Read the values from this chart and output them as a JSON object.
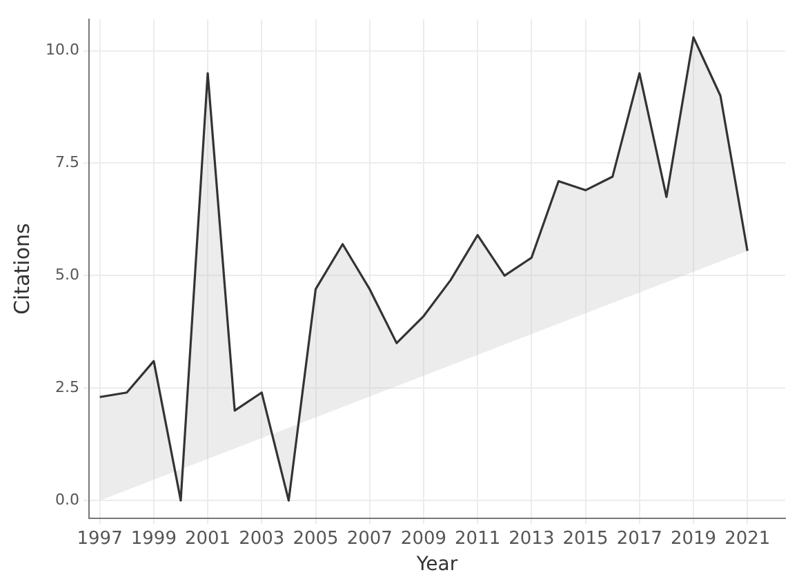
{
  "chart_data": {
    "type": "area",
    "xlabel": "Year",
    "ylabel": "Citations",
    "x": [
      1997,
      1998,
      1999,
      2000,
      2001,
      2002,
      2003,
      2004,
      2005,
      2006,
      2007,
      2008,
      2009,
      2010,
      2011,
      2012,
      2013,
      2014,
      2015,
      2016,
      2017,
      2018,
      2019,
      2020,
      2021
    ],
    "series": [
      {
        "color": "#333333",
        "values": [
          2.3,
          2.4,
          3.1,
          0,
          9.5,
          2.0,
          2.4,
          0,
          4.7,
          5.7,
          4.7,
          3.5,
          4.1,
          4.9,
          5.9,
          5.0,
          5.4,
          7.1,
          6.9,
          7.2,
          9.5,
          6.75,
          10.3,
          9.0,
          5.55
        ]
      }
    ],
    "xlim": [
      1996.6,
      2022.4
    ],
    "xticks": [
      1997,
      1999,
      2001,
      2003,
      2005,
      2007,
      2009,
      2011,
      2013,
      2015,
      2017,
      2019,
      2021
    ],
    "ylim": [
      -0.4,
      10.7
    ],
    "yticks": [
      {
        "value": 0,
        "label": "0.0"
      },
      {
        "value": 2.5,
        "label": "2.5"
      },
      {
        "value": 5,
        "label": "5.0"
      },
      {
        "value": 7.5,
        "label": "7.5"
      },
      {
        "value": 10,
        "label": "10.0"
      }
    ],
    "grid": true,
    "legend": false,
    "marker": "none",
    "line_style": "solid"
  }
}
